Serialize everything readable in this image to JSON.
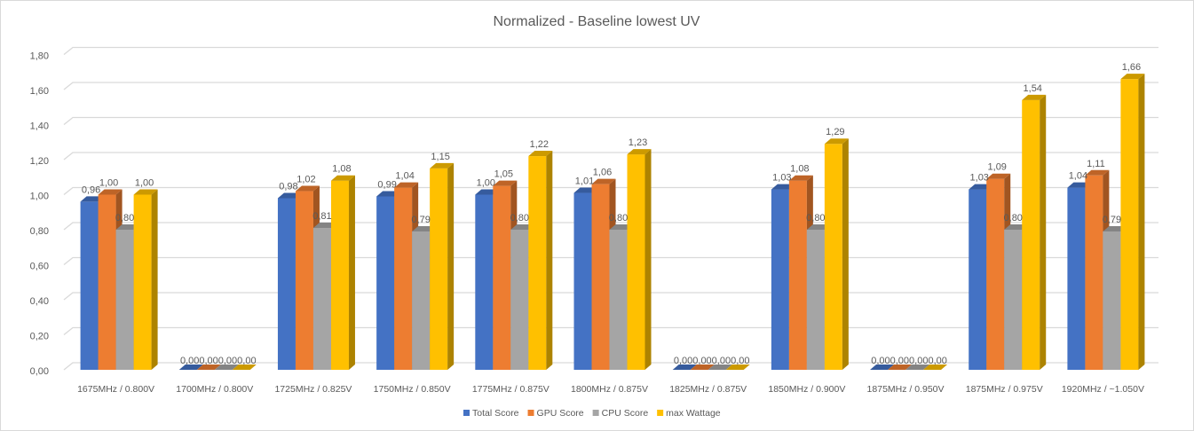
{
  "chart_data": {
    "type": "bar",
    "style": "3d-clustered-column",
    "title": "Normalized - Baseline lowest UV",
    "xlabel": "",
    "ylabel": "",
    "ylim": [
      0,
      1.8
    ],
    "yticks": [
      "0,00",
      "0,20",
      "0,40",
      "0,60",
      "0,80",
      "1,00",
      "1,20",
      "1,40",
      "1,60",
      "1,80"
    ],
    "grid": true,
    "legend_position": "bottom",
    "categories": [
      "1675MHz / 0.800V",
      "1700MHz / 0.800V",
      "1725MHz / 0.825V",
      "1750MHz / 0.850V",
      "1775MHz / 0.875V",
      "1800MHz / 0.875V",
      "1825MHz / 0.875V",
      "1850MHz / 0.900V",
      "1875MHz / 0.950V",
      "1875MHz / 0.975V",
      "1920MHz / ~1.050V"
    ],
    "series": [
      {
        "name": "Total Score",
        "color": "#4472c4",
        "values": [
          0.96,
          0,
          0.98,
          0.99,
          1.0,
          1.01,
          0,
          1.03,
          0,
          1.03,
          1.04
        ]
      },
      {
        "name": "GPU Score",
        "color": "#ed7d31",
        "values": [
          1.0,
          0,
          1.02,
          1.04,
          1.05,
          1.06,
          0,
          1.08,
          0,
          1.09,
          1.11
        ]
      },
      {
        "name": "CPU Score",
        "color": "#a5a5a5",
        "values": [
          0.8,
          0,
          0.81,
          0.79,
          0.8,
          0.8,
          0,
          0.8,
          0,
          0.8,
          0.79
        ]
      },
      {
        "name": "max Wattage",
        "color": "#ffc000",
        "values": [
          1.0,
          0,
          1.08,
          1.15,
          1.22,
          1.23,
          0,
          1.29,
          0,
          1.54,
          1.66
        ]
      }
    ]
  }
}
